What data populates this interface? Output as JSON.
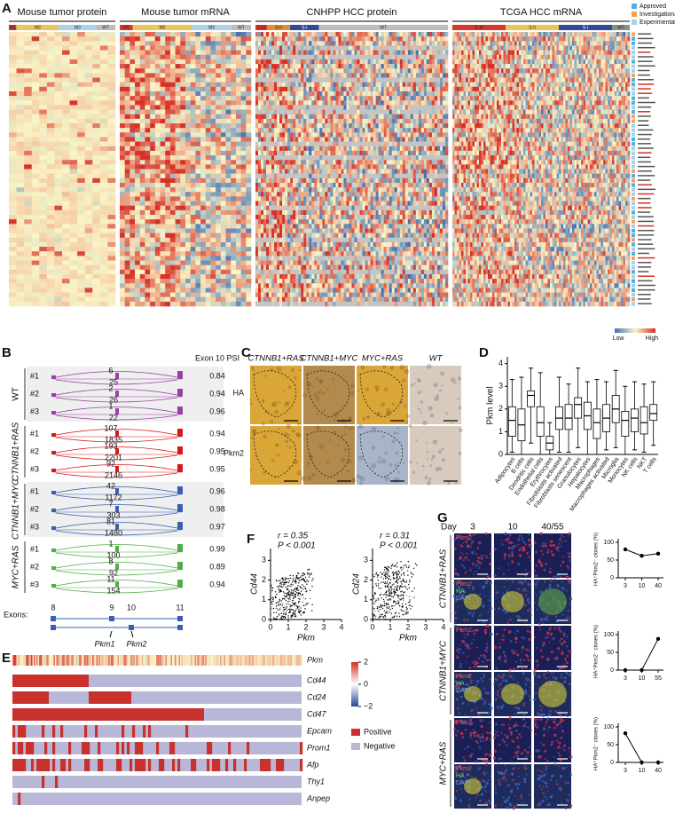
{
  "panels": {
    "A": {
      "label": "A",
      "segments": [
        {
          "title": "Mouse tumor protein",
          "groups": [
            "M1",
            "M2",
            "M3",
            "WT"
          ]
        },
        {
          "title": "Mouse tumor mRNA",
          "groups": [
            "M1",
            "M2",
            "M3",
            "WT"
          ]
        },
        {
          "title": "CNHPP HCC protein",
          "groups": [
            "S-III",
            "S-II",
            "S-I",
            "WT"
          ]
        },
        {
          "title": "TCGA HCC mRNA",
          "groups": [
            "S-III",
            "S-II",
            "S-I",
            "WT"
          ]
        }
      ],
      "drug_legend": [
        "Approved",
        "Investigational",
        "Experimental"
      ],
      "colorbar": [
        "Low",
        "High"
      ]
    },
    "B": {
      "label": "B",
      "psi_title": "Exon 10 PSI",
      "groups": [
        {
          "name": "WT",
          "samples": [
            {
              "id": "#1",
              "top": 6,
              "bottom": 25,
              "psi": 0.84
            },
            {
              "id": "#2",
              "top": 2,
              "bottom": 26,
              "psi": 0.94
            },
            {
              "id": "#3",
              "top": 1,
              "bottom": 22,
              "psi": 0.96
            }
          ]
        },
        {
          "name": "CTNNB1+RAS",
          "samples": [
            {
              "id": "#1",
              "top": 107,
              "bottom": 1835,
              "psi": 0.94
            },
            {
              "id": "#2",
              "top": 193,
              "bottom": 2201,
              "psi": 0.95
            },
            {
              "id": "#3",
              "top": 92,
              "bottom": 2146,
              "psi": 0.95
            }
          ]
        },
        {
          "name": "CTNNB1+MYC",
          "samples": [
            {
              "id": "#1",
              "top": 42,
              "bottom": 1172,
              "psi": 0.96
            },
            {
              "id": "#2",
              "top": 7,
              "bottom": 303,
              "psi": 0.98
            },
            {
              "id": "#3",
              "top": 81,
              "bottom": 1480,
              "psi": 0.97
            }
          ]
        },
        {
          "name": "MYC+RAS",
          "samples": [
            {
              "id": "#1",
              "top": 1,
              "bottom": 100,
              "psi": 0.99
            },
            {
              "id": "#2",
              "top": 8,
              "bottom": 92,
              "psi": 0.89
            },
            {
              "id": "#3",
              "top": 11,
              "bottom": 154,
              "psi": 0.94
            }
          ]
        }
      ],
      "exons_label": "Exons:",
      "exon_numbers": [
        "8",
        "9",
        "10",
        "11"
      ],
      "isoforms": [
        "Pkm1",
        "Pkm2"
      ]
    },
    "C": {
      "label": "C",
      "columns": [
        "CTNNB1+RAS",
        "CTNNB1+MYC",
        "MYC+RAS",
        "WT"
      ],
      "rows": [
        "HA",
        "Pkm2"
      ]
    },
    "D": {
      "label": "D",
      "ylabel": "Pkm level",
      "ylim": [
        0,
        4.3
      ],
      "yticks": [
        0,
        1,
        2,
        3,
        4
      ],
      "categories": [
        "Adipocytes",
        "B cells",
        "Dendritic cells",
        "Endothelial cells",
        "Erythrocytes",
        "Fibroblasts activated",
        "Fibroblasts senescent",
        "Granulocytes",
        "Hepatocytes",
        "Macrophages",
        "Macrophages activated",
        "Microglia",
        "Monocytes",
        "NK cells",
        "NKT",
        "T cells"
      ],
      "boxes": [
        {
          "min": 0.1,
          "q1": 0.8,
          "median": 1.5,
          "q3": 2.1,
          "max": 3.3
        },
        {
          "min": 0.0,
          "q1": 0.6,
          "median": 1.3,
          "q3": 2.0,
          "max": 3.4
        },
        {
          "min": 0.5,
          "q1": 2.1,
          "median": 2.6,
          "q3": 2.8,
          "max": 3.8
        },
        {
          "min": 0.0,
          "q1": 0.8,
          "median": 1.4,
          "q3": 2.1,
          "max": 3.6
        },
        {
          "min": 0.0,
          "q1": 0.2,
          "median": 0.5,
          "q3": 0.8,
          "max": 1.4
        },
        {
          "min": 0.1,
          "q1": 1.1,
          "median": 1.6,
          "q3": 2.1,
          "max": 3.4
        },
        {
          "min": 0.1,
          "q1": 1.1,
          "median": 1.6,
          "q3": 2.2,
          "max": 3.1
        },
        {
          "min": 0.3,
          "q1": 1.6,
          "median": 2.2,
          "q3": 2.5,
          "max": 3.8
        },
        {
          "min": 0.0,
          "q1": 1.1,
          "median": 1.7,
          "q3": 2.3,
          "max": 3.2
        },
        {
          "min": 0.0,
          "q1": 0.7,
          "median": 1.4,
          "q3": 2.0,
          "max": 3.3
        },
        {
          "min": 0.2,
          "q1": 1.0,
          "median": 1.6,
          "q3": 2.2,
          "max": 3.2
        },
        {
          "min": 0.3,
          "q1": 1.4,
          "median": 2.0,
          "q3": 2.6,
          "max": 3.7
        },
        {
          "min": 0.0,
          "q1": 0.8,
          "median": 1.5,
          "q3": 1.9,
          "max": 3.0
        },
        {
          "min": 0.2,
          "q1": 1.0,
          "median": 1.6,
          "q3": 2.0,
          "max": 3.2
        },
        {
          "min": 0.1,
          "q1": 0.9,
          "median": 1.4,
          "q3": 2.1,
          "max": 3.1
        },
        {
          "min": 0.4,
          "q1": 1.5,
          "median": 1.8,
          "q3": 2.2,
          "max": 3.2
        }
      ]
    },
    "E": {
      "label": "E",
      "rows": [
        "Pkm",
        "Cd44",
        "Cd24",
        "Cd47",
        "Epcam",
        "Prom1",
        "Afp",
        "Thy1",
        "Anpep"
      ],
      "colorbar_ticks": [
        2,
        0,
        {
          "value": -2,
          "label": "−2"
        }
      ],
      "legend": [
        "Positive",
        "Negative"
      ]
    },
    "F": {
      "label": "F",
      "xlabel": "Pkm",
      "xlim": [
        0,
        4
      ],
      "xticks": [
        0,
        1,
        2,
        3,
        4
      ],
      "ylim": [
        0,
        3.6
      ],
      "yticks": [
        0,
        1,
        2,
        3
      ],
      "plots": [
        {
          "ylabel": "Cd44",
          "r": "r = 0.35",
          "p": "P < 0.001"
        },
        {
          "ylabel": "Cd24",
          "r": "r = 0.31",
          "p": "P < 0.001"
        }
      ]
    },
    "G": {
      "label": "G",
      "day_label": "Day",
      "days": [
        "3",
        "10",
        "40/55"
      ],
      "stains": {
        "pkm2": "Pkm2",
        "ha": "HA",
        "dapi": "DAPI"
      },
      "ylabel": "HA⁺Pkm2⁻ clones (%)",
      "ylim": [
        0,
        105
      ],
      "yticks": [
        0,
        50,
        100
      ],
      "charts": [
        {
          "group": "CTNNB1+RAS",
          "x": [
            "3",
            "10",
            "40"
          ],
          "values": [
            80,
            62,
            68
          ]
        },
        {
          "group": "CTNNB1+MYC",
          "x": [
            "3",
            "10",
            "55"
          ],
          "values": [
            0,
            0,
            88
          ]
        },
        {
          "group": "MYC+RAS",
          "x": [
            "3",
            "10",
            "40"
          ],
          "values": [
            82,
            0,
            0
          ]
        }
      ]
    }
  }
}
